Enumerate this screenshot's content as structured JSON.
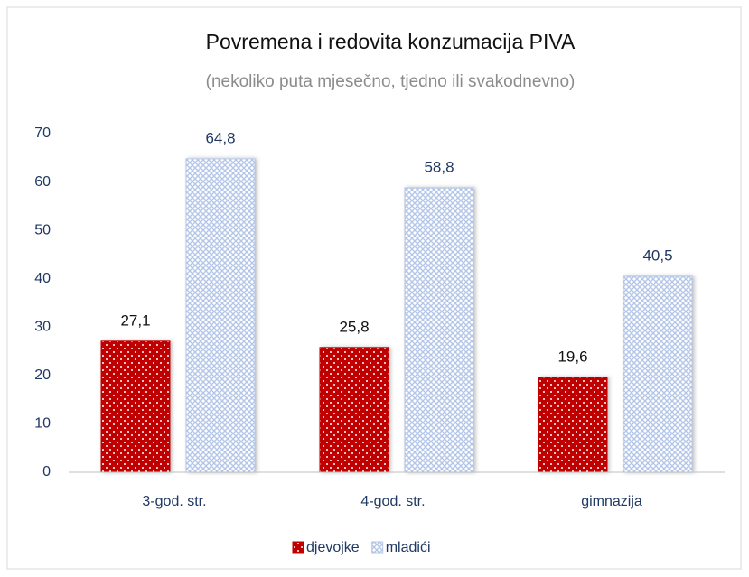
{
  "chart_data": {
    "type": "bar",
    "title": "Povremena i redovita konzumacija PIVA",
    "subtitle": "(nekoliko puta mjesečno, tjedno ili svakodnevno)",
    "categories": [
      "3-god. str.",
      "4-god. str.",
      "gimnazija"
    ],
    "series": [
      {
        "name": "djevojke",
        "color": "#c00000",
        "values": [
          27.1,
          25.8,
          19.6
        ],
        "value_labels": [
          "27,1",
          "25,8",
          "19,6"
        ]
      },
      {
        "name": "mladići",
        "color": "#b4c6e7",
        "values": [
          64.8,
          58.8,
          40.5
        ],
        "value_labels": [
          "64,8",
          "58,8",
          "40,5"
        ]
      }
    ],
    "ylim": [
      0,
      70
    ],
    "yticks": [
      0,
      10,
      20,
      30,
      40,
      50,
      60,
      70
    ],
    "grid": false,
    "legend": "bottom"
  }
}
